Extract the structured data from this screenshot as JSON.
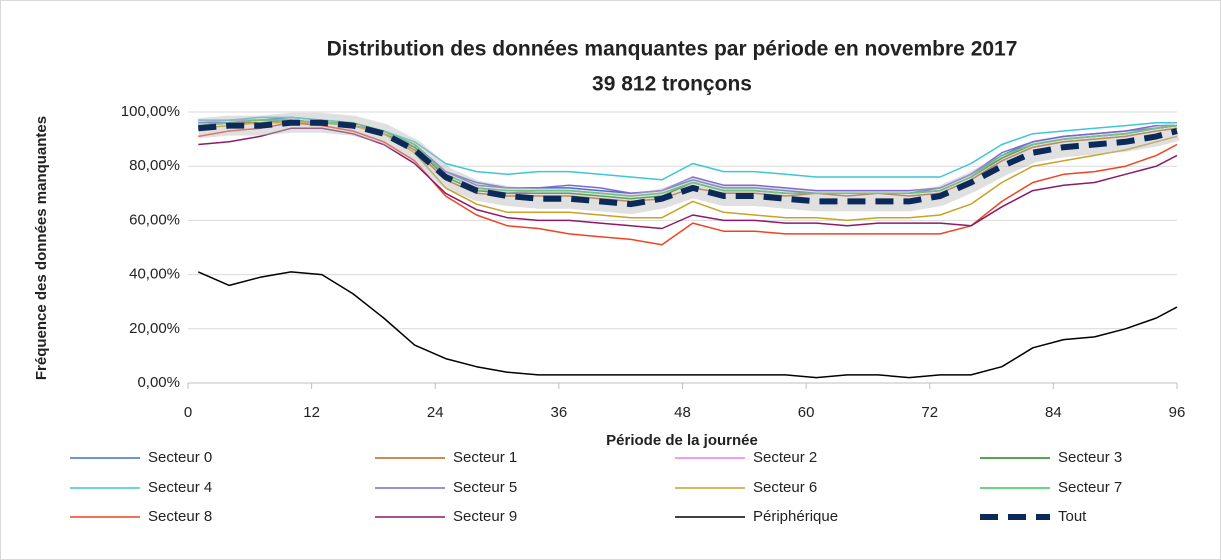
{
  "chart_data": {
    "type": "line",
    "title": "Distribution des données manquantes par période en novembre 2017",
    "subtitle": "39 812 tronçons",
    "x_label": "Période de la journée",
    "y_label": "Fréquence des données manquantes",
    "xlim": [
      0,
      96
    ],
    "xticks": [
      0,
      12,
      24,
      36,
      48,
      60,
      72,
      84,
      96
    ],
    "ylim": [
      0,
      100
    ],
    "yticks": [
      {
        "value": 0,
        "label": "0,00%"
      },
      {
        "value": 20,
        "label": "20,00%"
      },
      {
        "value": 40,
        "label": "40,00%"
      },
      {
        "value": 60,
        "label": "60,00%"
      },
      {
        "value": 80,
        "label": "80,00%"
      },
      {
        "value": 100,
        "label": "100,00%"
      }
    ],
    "grid": true,
    "legend": "bottom",
    "x": [
      1,
      4,
      7,
      10,
      13,
      16,
      19,
      22,
      25,
      28,
      31,
      34,
      37,
      40,
      43,
      46,
      49,
      52,
      55,
      58,
      61,
      64,
      67,
      70,
      73,
      76,
      79,
      82,
      85,
      88,
      91,
      94,
      96
    ],
    "series": [
      {
        "name": "Secteur 0",
        "color": "#4472c4",
        "values": [
          96,
          97,
          97,
          98,
          97,
          96,
          93,
          88,
          78,
          74,
          72,
          72,
          72,
          71,
          70,
          71,
          75,
          72,
          72,
          71,
          70,
          70,
          70,
          70,
          72,
          77,
          84,
          89,
          91,
          92,
          93,
          94,
          95
        ]
      },
      {
        "name": "Secteur 1",
        "color": "#b8651b",
        "values": [
          95,
          96,
          96,
          97,
          96,
          95,
          92,
          86,
          75,
          70,
          69,
          69,
          69,
          68,
          67,
          68,
          72,
          70,
          70,
          69,
          70,
          69,
          70,
          69,
          70,
          75,
          82,
          87,
          89,
          90,
          91,
          93,
          94
        ]
      },
      {
        "name": "Secteur 2",
        "color": "#f07ce8",
        "values": [
          96,
          97,
          97,
          97,
          96,
          95,
          93,
          87,
          77,
          72,
          70,
          71,
          71,
          70,
          69,
          70,
          74,
          71,
          71,
          70,
          70,
          70,
          70,
          70,
          71,
          76,
          83,
          88,
          90,
          91,
          92,
          94,
          95
        ]
      },
      {
        "name": "Secteur 3",
        "color": "#1a8a1a",
        "values": [
          95,
          96,
          97,
          97,
          96,
          95,
          92,
          87,
          76,
          71,
          70,
          70,
          70,
          69,
          68,
          69,
          74,
          71,
          71,
          70,
          70,
          70,
          70,
          70,
          71,
          76,
          83,
          88,
          90,
          91,
          92,
          94,
          95
        ]
      },
      {
        "name": "Secteur 4",
        "color": "#3ec6d6",
        "values": [
          97,
          97,
          98,
          98,
          97,
          96,
          93,
          89,
          81,
          78,
          77,
          78,
          78,
          77,
          76,
          75,
          81,
          78,
          78,
          77,
          76,
          76,
          76,
          76,
          76,
          81,
          88,
          92,
          93,
          94,
          95,
          96,
          96
        ]
      },
      {
        "name": "Secteur 5",
        "color": "#7f66d6",
        "values": [
          96,
          96,
          97,
          97,
          96,
          95,
          93,
          88,
          78,
          73,
          72,
          72,
          73,
          72,
          70,
          71,
          76,
          73,
          73,
          72,
          71,
          71,
          71,
          71,
          72,
          77,
          85,
          89,
          91,
          92,
          93,
          95,
          95
        ]
      },
      {
        "name": "Secteur 6",
        "color": "#c9a227",
        "values": [
          94,
          95,
          96,
          96,
          96,
          95,
          92,
          85,
          72,
          66,
          63,
          63,
          63,
          62,
          61,
          61,
          67,
          63,
          62,
          61,
          61,
          60,
          61,
          61,
          62,
          66,
          74,
          80,
          82,
          84,
          86,
          89,
          91
        ]
      },
      {
        "name": "Secteur 7",
        "color": "#33cc55",
        "values": [
          95,
          96,
          97,
          97,
          96,
          96,
          93,
          88,
          77,
          72,
          71,
          71,
          71,
          70,
          69,
          70,
          74,
          71,
          71,
          70,
          70,
          70,
          70,
          70,
          71,
          76,
          84,
          88,
          90,
          91,
          92,
          94,
          95
        ]
      },
      {
        "name": "Secteur 8",
        "color": "#ee4422",
        "values": [
          91,
          93,
          94,
          96,
          95,
          93,
          89,
          82,
          69,
          62,
          58,
          57,
          55,
          54,
          53,
          51,
          59,
          56,
          56,
          55,
          55,
          55,
          55,
          55,
          55,
          58,
          67,
          74,
          77,
          78,
          80,
          84,
          88
        ]
      },
      {
        "name": "Secteur 9",
        "color": "#8b1a6b",
        "values": [
          88,
          89,
          91,
          94,
          94,
          92,
          88,
          81,
          70,
          64,
          61,
          60,
          60,
          59,
          58,
          57,
          62,
          60,
          60,
          59,
          59,
          58,
          59,
          59,
          59,
          58,
          65,
          71,
          73,
          74,
          77,
          80,
          84
        ]
      },
      {
        "name": "Périphérique",
        "color": "#000000",
        "values": [
          41,
          36,
          39,
          41,
          40,
          33,
          24,
          14,
          9,
          6,
          4,
          3,
          3,
          3,
          3,
          3,
          3,
          3,
          3,
          3,
          2,
          3,
          3,
          2,
          3,
          3,
          6,
          13,
          16,
          17,
          20,
          24,
          28
        ]
      },
      {
        "name": "Tout",
        "color": "#0b2a5a",
        "dashed": true,
        "values": [
          94,
          95,
          95,
          96,
          96,
          95,
          92,
          86,
          76,
          71,
          69,
          68,
          68,
          67,
          66,
          68,
          72,
          69,
          69,
          68,
          67,
          67,
          67,
          67,
          69,
          74,
          80,
          85,
          87,
          88,
          89,
          91,
          93
        ]
      }
    ]
  }
}
